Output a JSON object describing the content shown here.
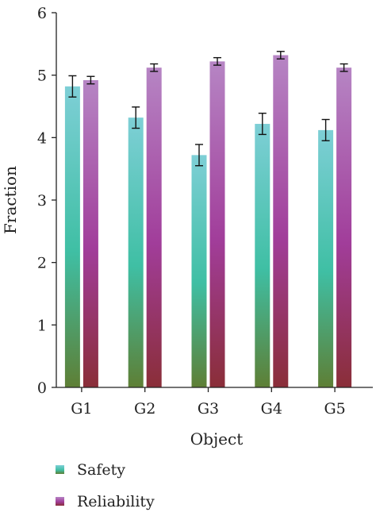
{
  "chart_data": {
    "type": "bar",
    "xlabel": "Object",
    "ylabel": "Fraction",
    "ylim": [
      0,
      6
    ],
    "yticks": [
      0,
      1,
      2,
      3,
      4,
      5,
      6
    ],
    "categories": [
      "G1",
      "G2",
      "G3",
      "G4",
      "G5"
    ],
    "grid": false,
    "legend_position": "bottom-left",
    "series": [
      {
        "name": "Safety",
        "values": [
          4.82,
          4.32,
          3.72,
          4.22,
          4.12
        ],
        "error": [
          0.17,
          0.17,
          0.17,
          0.17,
          0.17
        ],
        "colors": {
          "top": "#7ecfd6",
          "middle": "#3fbfa4",
          "bottom": "#5e7f35"
        }
      },
      {
        "name": "Reliability",
        "values": [
          4.92,
          5.12,
          5.22,
          5.32,
          5.12
        ],
        "error": [
          0.06,
          0.06,
          0.06,
          0.06,
          0.06
        ],
        "colors": {
          "top": "#b685c4",
          "middle": "#a13d9a",
          "bottom": "#8a2e38"
        }
      }
    ]
  }
}
